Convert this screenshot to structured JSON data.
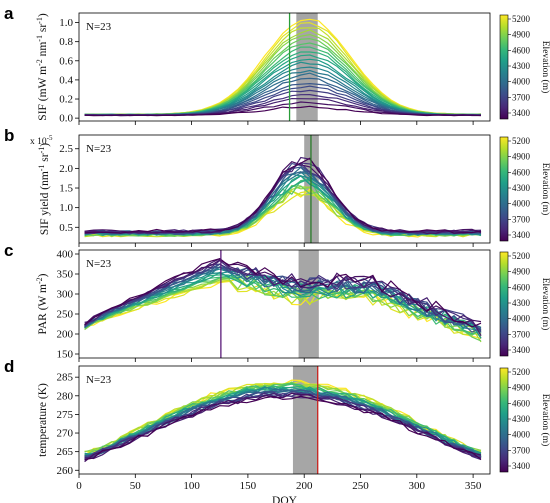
{
  "chart_data": [
    {
      "type": "line",
      "panel_label": "a",
      "annotation": "N=23",
      "ylabel": "SIF  (mW m-2 nm-1 sr-1)",
      "ylabel_parts": [
        "SIF  (mW m",
        "-2",
        " nm",
        "-1",
        " sr",
        "-1",
        ")"
      ],
      "xlim": [
        0,
        365
      ],
      "ylim": [
        -0.03,
        1.1
      ],
      "yticks": [
        "0.0",
        "0.2",
        "0.4",
        "0.6",
        "0.8",
        "1.0"
      ],
      "ytick_values": [
        0.0,
        0.2,
        0.4,
        0.6,
        0.8,
        1.0
      ],
      "shade_band": [
        193,
        212
      ],
      "vline": {
        "x": 187,
        "color": "#2a9d3a"
      },
      "profile": {
        "kind": "gauss",
        "peak_doy": 203,
        "width": 38,
        "base_low": 0.04,
        "base_high": 0.03,
        "peak_low": 1.04,
        "peak_high": 0.12,
        "noise": 0.004
      },
      "colorbar": {
        "label": "Elevation (m)",
        "ticks": [
          "5200",
          "4900",
          "4600",
          "4300",
          "4000",
          "3700",
          "3400"
        ]
      }
    },
    {
      "type": "line",
      "panel_label": "b",
      "annotation": "N=23",
      "scale_note": "x 10-5",
      "scale_note_parts": [
        "x 10",
        "-5"
      ],
      "ylabel": "SIF yield (nm-1 sr-1)",
      "ylabel_parts": [
        "SIF yield (nm",
        "-1",
        " sr",
        "-1",
        ")"
      ],
      "xlim": [
        0,
        365
      ],
      "ylim": [
        0.1,
        2.85
      ],
      "yticks": [
        "0.5",
        "1.0",
        "1.5",
        "2.0",
        "2.5"
      ],
      "ytick_values": [
        0.5,
        1.0,
        1.5,
        2.0,
        2.5
      ],
      "shade_band": [
        200,
        213
      ],
      "vline": {
        "x": 206,
        "color": "#2a7a2a"
      },
      "profile": {
        "kind": "gauss",
        "peak_doy": 198,
        "width": 26,
        "base_low": 0.3,
        "base_high": 0.4,
        "peak_low": 1.35,
        "peak_high": 2.25,
        "noise": 0.05
      },
      "colorbar": {
        "label": "Elevation (m)",
        "ticks": [
          "5200",
          "4900",
          "4600",
          "4300",
          "4000",
          "3700",
          "3400"
        ]
      }
    },
    {
      "type": "line",
      "panel_label": "c",
      "annotation": "N=23",
      "ylabel": "PAR (W m-2)",
      "ylabel_parts": [
        "PAR (W m",
        "-2",
        ")"
      ],
      "xlim": [
        0,
        365
      ],
      "ylim": [
        140,
        410
      ],
      "yticks": [
        "150",
        "200",
        "250",
        "300",
        "350",
        "400"
      ],
      "ytick_values": [
        150,
        200,
        250,
        300,
        350,
        400
      ],
      "shade_band": [
        195,
        213
      ],
      "vline": {
        "x": 126,
        "color": "#5a1a7a"
      },
      "profile": {
        "kind": "par",
        "peak_doy": 130,
        "noise": 12
      },
      "colorbar": {
        "label": "Elevation (m)",
        "ticks": [
          "5200",
          "4900",
          "4600",
          "4300",
          "4000",
          "3700",
          "3400"
        ]
      }
    },
    {
      "type": "line",
      "panel_label": "d",
      "annotation": "N=23",
      "ylabel": "temperature (K)",
      "xlabel": "DOY",
      "xlim": [
        0,
        365
      ],
      "ylim": [
        259,
        288
      ],
      "yticks": [
        "260",
        "265",
        "270",
        "275",
        "280",
        "285"
      ],
      "ytick_values": [
        260,
        265,
        270,
        275,
        280,
        285
      ],
      "xticks": [
        "0",
        "50",
        "100",
        "150",
        "200",
        "250",
        "300",
        "350"
      ],
      "xtick_values": [
        0,
        50,
        100,
        150,
        200,
        250,
        300,
        350
      ],
      "shade_band": [
        190,
        212
      ],
      "vline": {
        "x": 212,
        "color": "#c8221e"
      },
      "profile": {
        "kind": "temp",
        "noise": 0.8
      },
      "colorbar": {
        "label": "Elevation (m)",
        "ticks": [
          "5200",
          "4900",
          "4600",
          "4300",
          "4000",
          "3700",
          "3400"
        ]
      }
    }
  ],
  "series_count": 23,
  "colormap": [
    "#440154",
    "#482878",
    "#3e4989",
    "#31688e",
    "#26828e",
    "#1f9e89",
    "#35b779",
    "#6ece58",
    "#b5de2b",
    "#fde725"
  ],
  "colors": {
    "shade": "#a6a6a6"
  }
}
